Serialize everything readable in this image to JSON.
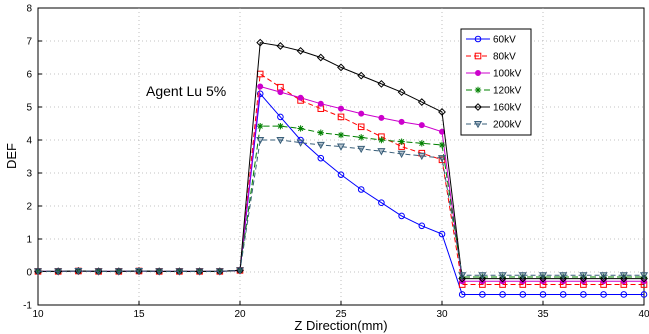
{
  "chart_data": {
    "type": "line",
    "title": "",
    "xlabel": "Z Direction(mm)",
    "ylabel": "DEF",
    "annotation": "Agent Lu 5%",
    "xlim": [
      10,
      40
    ],
    "ylim": [
      -1,
      8
    ],
    "xticks": [
      10,
      15,
      20,
      25,
      30,
      35,
      40
    ],
    "yticks": [
      -1,
      0,
      1,
      2,
      3,
      4,
      5,
      6,
      7,
      8
    ],
    "grid": true,
    "legend_position": "top-right",
    "x": [
      10,
      11,
      12,
      13,
      14,
      15,
      16,
      17,
      18,
      19,
      20,
      21,
      22,
      23,
      24,
      25,
      26,
      27,
      28,
      29,
      30,
      31,
      32,
      33,
      34,
      35,
      36,
      37,
      38,
      39,
      40
    ],
    "series": [
      {
        "name": "60kV",
        "color": "#0000ff",
        "dash": "",
        "marker": "circle",
        "values": [
          0.02,
          0.02,
          0.03,
          0.02,
          0.02,
          0.03,
          0.02,
          0.02,
          0.02,
          0.02,
          0.05,
          5.4,
          4.7,
          4.0,
          3.45,
          2.95,
          2.5,
          2.1,
          1.7,
          1.4,
          1.15,
          -0.68,
          -0.68,
          -0.68,
          -0.68,
          -0.68,
          -0.68,
          -0.68,
          -0.68,
          -0.68,
          -0.68
        ]
      },
      {
        "name": "80kV",
        "color": "#ff0000",
        "dash": "5,3",
        "marker": "square",
        "values": [
          0.02,
          0.02,
          0.03,
          0.02,
          0.02,
          0.03,
          0.02,
          0.02,
          0.02,
          0.02,
          0.05,
          6.0,
          5.6,
          5.2,
          4.95,
          4.7,
          4.4,
          4.1,
          3.8,
          3.6,
          3.4,
          -0.38,
          -0.38,
          -0.38,
          -0.38,
          -0.38,
          -0.38,
          -0.38,
          -0.38,
          -0.38,
          -0.38
        ]
      },
      {
        "name": "100kV",
        "color": "#cc00cc",
        "dash": "",
        "marker": "dot",
        "values": [
          0.02,
          0.02,
          0.03,
          0.02,
          0.02,
          0.03,
          0.02,
          0.02,
          0.02,
          0.02,
          0.05,
          5.62,
          5.45,
          5.28,
          5.1,
          4.95,
          4.8,
          4.67,
          4.55,
          4.45,
          4.25,
          -0.28,
          -0.28,
          -0.28,
          -0.28,
          -0.28,
          -0.28,
          -0.28,
          -0.28,
          -0.28,
          -0.28
        ]
      },
      {
        "name": "120kV",
        "color": "#008000",
        "dash": "6,3",
        "marker": "star",
        "values": [
          0.02,
          0.02,
          0.03,
          0.02,
          0.02,
          0.03,
          0.02,
          0.02,
          0.02,
          0.02,
          0.05,
          4.42,
          4.42,
          4.35,
          4.22,
          4.15,
          4.08,
          4.0,
          3.95,
          3.9,
          3.85,
          -0.15,
          -0.15,
          -0.15,
          -0.15,
          -0.15,
          -0.15,
          -0.15,
          -0.15,
          -0.15,
          -0.15
        ]
      },
      {
        "name": "160kV",
        "color": "#000000",
        "dash": "",
        "marker": "diamond",
        "values": [
          0.02,
          0.02,
          0.03,
          0.02,
          0.02,
          0.03,
          0.02,
          0.02,
          0.02,
          0.02,
          0.05,
          6.95,
          6.85,
          6.7,
          6.5,
          6.2,
          5.95,
          5.7,
          5.45,
          5.15,
          4.85,
          -0.2,
          -0.2,
          -0.2,
          -0.2,
          -0.2,
          -0.2,
          -0.2,
          -0.2,
          -0.2,
          -0.2
        ]
      },
      {
        "name": "200kV",
        "color": "#3a5f7a",
        "dash": "5,3",
        "marker": "triangle-down",
        "values": [
          0.02,
          0.02,
          0.03,
          0.02,
          0.02,
          0.03,
          0.02,
          0.02,
          0.02,
          0.02,
          0.05,
          4.0,
          4.0,
          3.92,
          3.85,
          3.8,
          3.73,
          3.66,
          3.58,
          3.52,
          3.45,
          -0.1,
          -0.1,
          -0.1,
          -0.1,
          -0.1,
          -0.1,
          -0.1,
          -0.1,
          -0.1,
          -0.1
        ]
      }
    ]
  }
}
